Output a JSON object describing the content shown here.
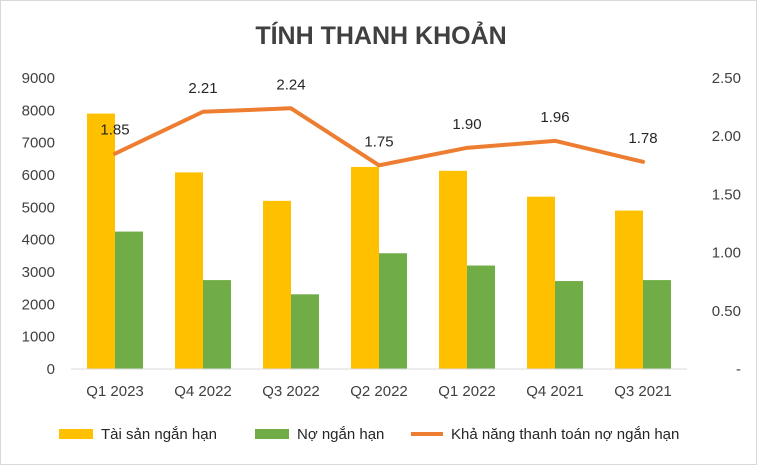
{
  "chart_data": {
    "type": "bar",
    "title": "TÍNH THANH KHOẢN",
    "categories": [
      "Q1 2023",
      "Q4 2022",
      "Q3 2022",
      "Q2 2022",
      "Q1 2022",
      "Q4 2021",
      "Q3 2021"
    ],
    "series": [
      {
        "name": "Tài sản ngắn hạn",
        "type": "bar",
        "axis": "left",
        "color": "#FFC000",
        "values": [
          7900,
          6080,
          5200,
          6250,
          6130,
          5330,
          4900
        ]
      },
      {
        "name": "Nợ ngắn hạn",
        "type": "bar",
        "axis": "left",
        "color": "#70AD47",
        "values": [
          4250,
          2750,
          2310,
          3580,
          3200,
          2720,
          2750
        ]
      },
      {
        "name": "Khả năng thanh toán nợ ngắn hạn",
        "type": "line",
        "axis": "right",
        "color": "#ED7D31",
        "values": [
          1.85,
          2.21,
          2.24,
          1.75,
          1.9,
          1.96,
          1.78
        ],
        "labels": [
          "1.85",
          "2.21",
          "2.24",
          "1.75",
          "1.90",
          "1.96",
          "1.78"
        ]
      }
    ],
    "left_axis": {
      "min": 0,
      "max": 9000,
      "step": 1000,
      "ticks": [
        "0",
        "1000",
        "2000",
        "3000",
        "4000",
        "5000",
        "6000",
        "7000",
        "8000",
        "9000"
      ]
    },
    "right_axis": {
      "min": 0,
      "max": 2.5,
      "step": 0.5,
      "ticks": [
        "-",
        "0.50",
        "1.00",
        "1.50",
        "2.00",
        "2.50"
      ]
    },
    "grid": false,
    "legend_position": "bottom"
  }
}
